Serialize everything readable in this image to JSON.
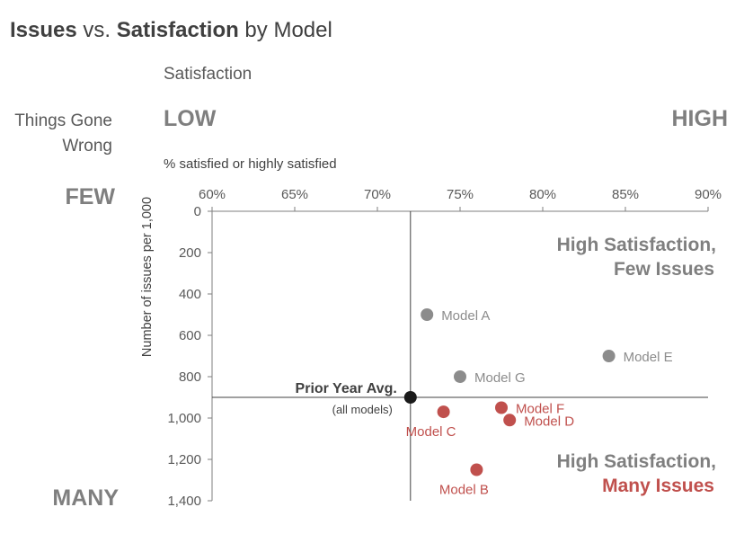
{
  "title": {
    "part1": "Issues",
    "part2": " vs. ",
    "part3": "Satisfaction",
    "part4": " by Model"
  },
  "satisfaction_heading": "Satisfaction",
  "things_gone_wrong": {
    "line1": "Things Gone",
    "line2": "Wrong"
  },
  "scale_words": {
    "low": "LOW",
    "high": "HIGH",
    "few": "FEW",
    "many": "MANY"
  },
  "chart_data": {
    "type": "scatter",
    "title": "Issues vs. Satisfaction by Model",
    "xlabel": "% satisfied or highly satisfied",
    "ylabel": "Number of issues per 1,000",
    "xlim": [
      60,
      90
    ],
    "ylim": [
      0,
      1400
    ],
    "y_inverted": true,
    "x_ticks": [
      60,
      65,
      70,
      75,
      80,
      85,
      90
    ],
    "x_tick_labels": [
      "60%",
      "65%",
      "70%",
      "75%",
      "80%",
      "85%",
      "90%"
    ],
    "y_ticks": [
      0,
      200,
      400,
      600,
      800,
      1000,
      1200,
      1400
    ],
    "y_tick_labels": [
      "0",
      "200",
      "400",
      "600",
      "800",
      "1,000",
      "1,200",
      "1,400"
    ],
    "reference": {
      "label": "Prior Year Avg.",
      "sublabel": "(all models)",
      "x": 72,
      "y": 900
    },
    "points": [
      {
        "name": "Model A",
        "x": 73,
        "y": 500,
        "group": "gray",
        "label_pos": "right"
      },
      {
        "name": "Model E",
        "x": 84,
        "y": 700,
        "group": "gray",
        "label_pos": "right"
      },
      {
        "name": "Model G",
        "x": 75,
        "y": 800,
        "group": "gray",
        "label_pos": "right"
      },
      {
        "name": "Model F",
        "x": 77.5,
        "y": 950,
        "group": "red",
        "label_pos": "right"
      },
      {
        "name": "Model D",
        "x": 78,
        "y": 1010,
        "group": "red",
        "label_pos": "right"
      },
      {
        "name": "Model C",
        "x": 74,
        "y": 970,
        "group": "red",
        "label_pos": "below"
      },
      {
        "name": "Model B",
        "x": 76,
        "y": 1250,
        "group": "red",
        "label_pos": "below"
      }
    ],
    "annotations": {
      "top_right": {
        "line1": "High Satisfaction,",
        "line2": "Few Issues"
      },
      "bottom_right": {
        "line1": "High Satisfaction,",
        "line2": "Many Issues"
      }
    },
    "colors": {
      "gray": "#8c8c8c",
      "red": "#c0504d",
      "reference": "#1a1a1a",
      "axis": "#7f7f7f"
    }
  }
}
